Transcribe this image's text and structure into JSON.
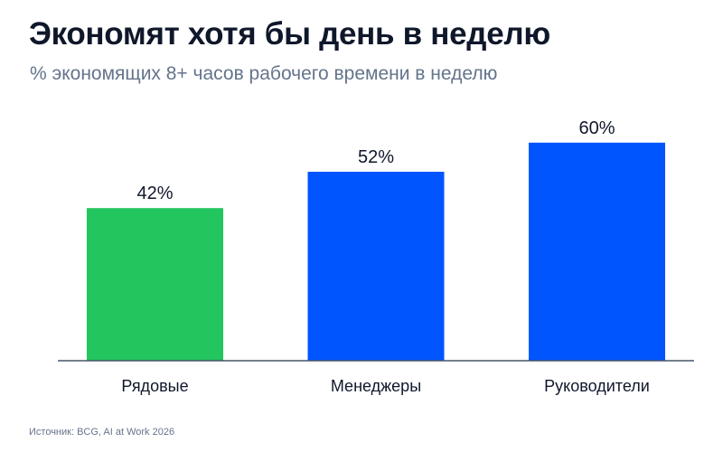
{
  "header": {
    "title": "Экономят хотя бы день в неделю",
    "subtitle": "% экономящих 8+ часов рабочего времени в неделю"
  },
  "footer": {
    "source": "Источник: BCG, AI at Work 2026"
  },
  "chart_data": {
    "type": "bar",
    "title": "Экономят хотя бы день в неделю",
    "subtitle": "% экономящих 8+ часов рабочего времени в неделю",
    "categories": [
      "Рядовые",
      "Менеджеры",
      "Руководители"
    ],
    "values": [
      42,
      52,
      60
    ],
    "value_labels": [
      "42%",
      "52%",
      "60%"
    ],
    "colors": [
      "#22c55e",
      "#0055ff",
      "#0055ff"
    ],
    "xlabel": "",
    "ylabel": "",
    "ylim": [
      0,
      100
    ],
    "grid": false,
    "legend": "none"
  }
}
